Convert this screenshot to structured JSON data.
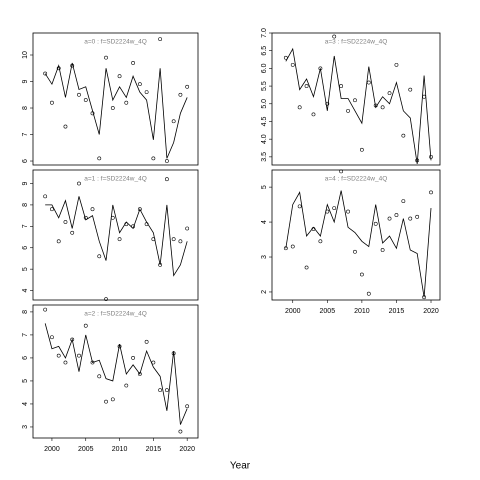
{
  "xlabel": "Year",
  "chart_data": [
    {
      "type": "line",
      "title": "a=0 : f=SD2224w_4Q",
      "x": [
        1999,
        2000,
        2001,
        2002,
        2003,
        2004,
        2005,
        2006,
        2007,
        2008,
        2009,
        2010,
        2011,
        2012,
        2013,
        2014,
        2015,
        2016,
        2017,
        2018,
        2019,
        2020
      ],
      "values": [
        9.3,
        8.9,
        9.6,
        8.4,
        9.7,
        8.7,
        8.8,
        7.9,
        7.0,
        9.5,
        8.3,
        8.8,
        8.4,
        9.2,
        8.6,
        8.3,
        6.8,
        9.5,
        6.1,
        6.7,
        7.8,
        8.4
      ],
      "markers": [
        9.3,
        8.2,
        9.5,
        7.3,
        9.6,
        8.5,
        8.3,
        7.8,
        6.1,
        9.9,
        8.0,
        9.2,
        8.2,
        9.7,
        8.9,
        8.6,
        6.1,
        10.6,
        6.0,
        7.5,
        8.5,
        8.8
      ],
      "color": "#000000",
      "xlim": [
        1997.2,
        2021.6
      ],
      "ylim": [
        5.85,
        10.83
      ],
      "yticks": [
        6,
        7,
        8,
        9,
        10
      ]
    },
    {
      "type": "line",
      "title": "a=1 : f=SD2224w_4Q",
      "x": [
        1999,
        2000,
        2001,
        2002,
        2003,
        2004,
        2005,
        2006,
        2007,
        2008,
        2009,
        2010,
        2011,
        2012,
        2013,
        2014,
        2015,
        2016,
        2017,
        2018,
        2019,
        2020
      ],
      "values": [
        8.0,
        8.0,
        7.4,
        8.2,
        6.9,
        8.4,
        7.3,
        7.5,
        6.3,
        5.4,
        8.0,
        6.7,
        7.2,
        6.9,
        7.8,
        7.2,
        6.7,
        5.2,
        8.0,
        4.7,
        5.2,
        6.3
      ],
      "markers": [
        8.4,
        7.8,
        6.3,
        7.2,
        6.7,
        9.0,
        7.4,
        7.8,
        5.6,
        3.6,
        7.4,
        6.4,
        7.1,
        7.0,
        7.8,
        7.1,
        6.4,
        5.2,
        9.2,
        6.4,
        6.3,
        6.9
      ],
      "color": "#000000",
      "xlim": [
        1997.2,
        2021.6
      ],
      "ylim": [
        3.56,
        9.63
      ],
      "yticks": [
        4,
        5,
        6,
        7,
        8,
        9
      ]
    },
    {
      "type": "line",
      "title": "a=2 : f=SD2224w_4Q",
      "x": [
        1999,
        2000,
        2001,
        2002,
        2003,
        2004,
        2005,
        2006,
        2007,
        2008,
        2009,
        2010,
        2011,
        2012,
        2013,
        2014,
        2015,
        2016,
        2017,
        2018,
        2019,
        2020
      ],
      "values": [
        7.5,
        6.4,
        6.5,
        6.0,
        6.8,
        5.4,
        7.0,
        5.8,
        5.9,
        5.1,
        5.0,
        6.6,
        5.3,
        5.7,
        5.3,
        6.3,
        5.6,
        5.2,
        3.7,
        6.3,
        3.1,
        3.8
      ],
      "markers": [
        8.1,
        6.9,
        6.1,
        5.8,
        6.8,
        6.1,
        7.4,
        5.8,
        5.2,
        4.1,
        4.2,
        6.5,
        4.8,
        6.0,
        5.3,
        6.7,
        5.8,
        4.6,
        4.6,
        6.2,
        2.8,
        3.9
      ],
      "color": "#000000",
      "xlim": [
        1997.2,
        2021.6
      ],
      "ylim": [
        2.52,
        8.3
      ],
      "yticks": [
        3,
        4,
        5,
        6,
        7,
        8
      ],
      "xticks": [
        2000,
        2005,
        2010,
        2015,
        2020
      ]
    },
    {
      "type": "line",
      "title": "a=3 : f=SD2224w_4Q",
      "x": [
        1999,
        2000,
        2001,
        2002,
        2003,
        2004,
        2005,
        2006,
        2007,
        2008,
        2009,
        2010,
        2011,
        2012,
        2013,
        2014,
        2015,
        2016,
        2017,
        2018,
        2019,
        2020
      ],
      "values": [
        6.2,
        6.55,
        5.4,
        5.7,
        5.2,
        6.0,
        4.8,
        6.35,
        5.15,
        5.15,
        4.8,
        4.45,
        6.05,
        4.9,
        5.2,
        5.0,
        5.6,
        4.8,
        4.6,
        3.3,
        5.8,
        3.4
      ],
      "markers": [
        6.3,
        6.1,
        4.9,
        5.5,
        4.7,
        6.0,
        5.0,
        6.9,
        5.5,
        4.8,
        5.1,
        3.7,
        5.6,
        4.95,
        4.9,
        5.3,
        6.1,
        4.1,
        5.4,
        3.4,
        5.2,
        3.5
      ],
      "color": "#000000",
      "xlim": [
        1997.0,
        2021.3
      ],
      "ylim": [
        3.27,
        7.0
      ],
      "yticks": [
        3.5,
        {
          "value": 4,
          "label": "4.0"
        },
        4.5,
        {
          "value": 5,
          "label": "5.0"
        },
        5.5,
        {
          "value": 6,
          "label": "6.0"
        },
        6.5,
        {
          "value": 7,
          "label": "7.0"
        }
      ]
    },
    {
      "type": "line",
      "title": "a=4 : f=SD2224w_4Q",
      "x": [
        1999,
        2000,
        2001,
        2002,
        2003,
        2004,
        2005,
        2006,
        2007,
        2008,
        2009,
        2010,
        2011,
        2012,
        2013,
        2014,
        2015,
        2016,
        2017,
        2018,
        2019,
        2020
      ],
      "values": [
        3.25,
        4.5,
        4.85,
        3.6,
        3.85,
        3.6,
        4.5,
        4.0,
        4.9,
        3.85,
        3.7,
        3.45,
        3.3,
        4.5,
        3.4,
        3.6,
        3.25,
        4.1,
        3.2,
        3.1,
        1.85,
        4.4
      ],
      "markers": [
        3.25,
        3.3,
        4.45,
        2.7,
        3.8,
        3.45,
        4.3,
        4.4,
        5.45,
        4.3,
        3.15,
        2.5,
        1.95,
        3.95,
        3.2,
        4.1,
        4.2,
        4.6,
        4.1,
        4.15,
        1.85,
        4.85
      ],
      "color": "#000000",
      "xlim": [
        1997.0,
        2021.3
      ],
      "ylim": [
        1.77,
        5.49
      ],
      "yticks": [
        2,
        3,
        4,
        5
      ],
      "xticks": [
        2000,
        2005,
        2010,
        2015,
        2020
      ]
    }
  ]
}
